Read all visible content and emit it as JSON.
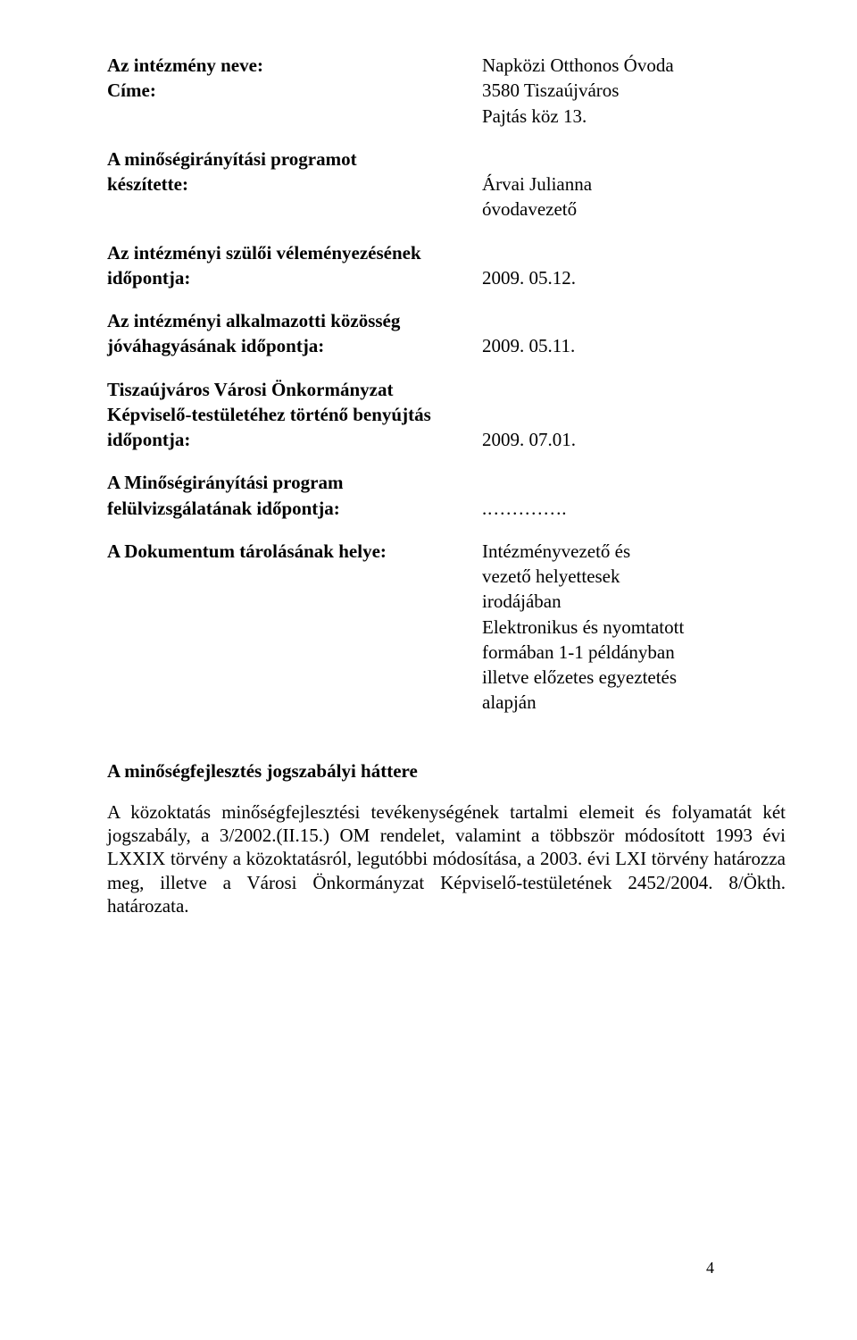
{
  "institution": {
    "name_label": "Az intézmény neve:",
    "name_value": "Napközi Otthonos Óvoda",
    "address_label": "Címe:",
    "address_line1": "3580 Tiszaújváros",
    "address_line2": "Pajtás köz 13."
  },
  "program_author": {
    "label_line1": "A minőségirányítási programot",
    "label_line2": "készítette:",
    "name": "Árvai Julianna",
    "title": "óvodavezető"
  },
  "parent_review": {
    "label_line1": "Az intézményi szülői véleményezésének",
    "label_line2": "időpontja:",
    "date": "2009. 05.12."
  },
  "staff_approval": {
    "label_line1": "Az intézményi alkalmazotti közösség",
    "label_line2": "jóváhagyásának időpontja:",
    "date": "2009. 05.11."
  },
  "council_submission": {
    "label_line1": "Tiszaújváros Városi Önkormányzat",
    "label_line2": "Képviselő-testületéhez történő benyújtás",
    "label_line3": "időpontja:",
    "date": "2009. 07.01."
  },
  "review": {
    "label_line1": "A Minőségirányítási program",
    "label_line2": "felülvizsgálatának időpontja:",
    "value": ".…………."
  },
  "storage": {
    "label": "A Dokumentum tárolásának helye:",
    "line1": "Intézményvezető és",
    "line2": "vezető helyettesek",
    "line3": "irodájában",
    "line4": "Elektronikus és nyomtatott",
    "line5": "formában 1-1 példányban",
    "line6": "illetve előzetes egyeztetés",
    "line7": "alapján"
  },
  "legal": {
    "title": "A minőségfejlesztés jogszabályi háttere",
    "body": "A közoktatás minőségfejlesztési tevékenységének tartalmi elemeit és folyamatát két jogszabály, a 3/2002.(II.15.) OM rendelet, valamint a többször módosított 1993 évi LXXIX törvény a közoktatásról, legutóbbi módosítása, a 2003. évi LXI törvény határozza meg, illetve a Városi Önkormányzat Képviselő-testületének 2452/2004. 8/Ökth. határozata."
  },
  "page_number": "4"
}
